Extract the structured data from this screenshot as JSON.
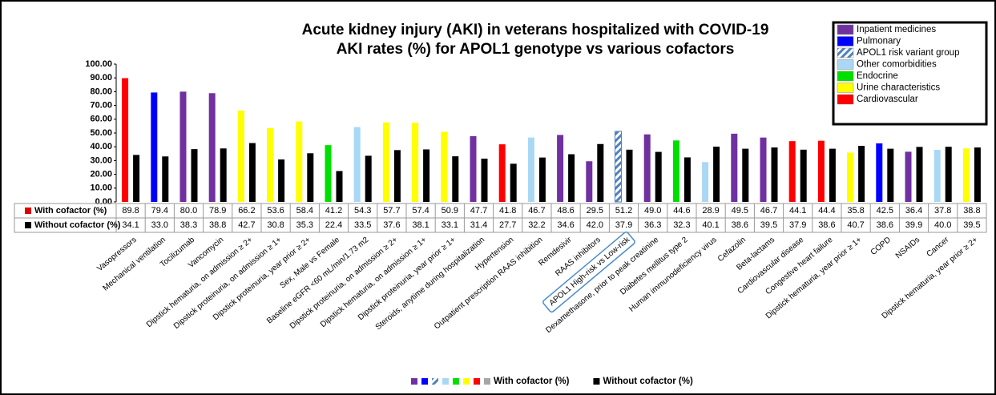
{
  "chart_data": {
    "type": "bar",
    "title": "Acute kidney injury (AKI) in veterans hospitalized with COVID-19",
    "subtitle": "AKI rates (%) for APOL1 genotype vs various cofactors",
    "categories": [
      "Vasopressors",
      "Mechanical ventilation",
      "Tocilizumab",
      "Vancomycin",
      "Dipstick hematuria, on admission ≥ 2+",
      "Dipstick proteinuria, on admission ≥ 1+",
      "Dipstick proteinuria, year prior ≥ 2+",
      "Sex, Male vs Female",
      "Baseline eGFR <60 mL/min/1.73 m2",
      "Dipstick proteinuria, on admission ≥ 2+",
      "Dipstick hematuria, on admission ≥ 1+",
      "Dipstick proteinuria, year prior ≥ 1+",
      "Steroids, anytime during hospitalization",
      "Hypertension",
      "Outpatient prescription RAAS inhibition",
      "Remdesivir",
      "RAAS inhibitors",
      "APOL1 High-risk vs Low-risk",
      "Dexamethasone, prior to peak creatinine",
      "Diabetes mellitus type 2",
      "Human immunodeficiency virus",
      "Cefazolin",
      "Beta-lactams",
      "Cardiovascular disease",
      "Congestive heart failure",
      "Dipstick hematuria, year prior ≥ 1+",
      "COPD",
      "NSAIDs",
      "Cancer",
      "Dipstick hematuria, year prior ≥ 2+"
    ],
    "series": [
      {
        "name": "With cofactor (%)",
        "color": "#e00000",
        "legend_color": "#a6a6a6",
        "colors": [
          "#ff0000",
          "#0000ff",
          "#7030a0",
          "#7030a0",
          "#ffff00",
          "#ffff00",
          "#ffff00",
          "#00e000",
          "#a9d8f5",
          "#ffff00",
          "#ffff00",
          "#ffff00",
          "#7030a0",
          "#ff0000",
          "#a9d8f5",
          "#7030a0",
          "#7030a0",
          "hatch",
          "#7030a0",
          "#00e000",
          "#a9d8f5",
          "#7030a0",
          "#7030a0",
          "#ff0000",
          "#ff0000",
          "#ffff00",
          "#0000ff",
          "#7030a0",
          "#a9d8f5",
          "#ffff00"
        ],
        "values": [
          89.8,
          79.4,
          80.0,
          78.9,
          66.2,
          53.6,
          58.4,
          41.2,
          54.3,
          57.7,
          57.4,
          50.9,
          47.7,
          41.8,
          46.7,
          48.6,
          29.5,
          51.2,
          49.0,
          44.6,
          28.9,
          49.5,
          46.7,
          44.1,
          44.4,
          35.8,
          42.5,
          36.4,
          37.8,
          38.8
        ],
        "value_labels": [
          "89.8",
          "79.4",
          "80.0",
          "78.9",
          "66.2",
          "53.6",
          "58.4",
          "41.2",
          "54.3",
          "57.7",
          "57.4",
          "50.9",
          "47.7",
          "41.8",
          "46.7",
          "48.6",
          "29.5",
          "51.2",
          "49.0",
          "44.6",
          "28.9",
          "49.5",
          "46.7",
          "44.1",
          "44.4",
          "35.8",
          "42.5",
          "36.4",
          "37.8",
          "38.8"
        ]
      },
      {
        "name": "Without cofactor (%)",
        "color": "#000000",
        "values": [
          34.1,
          33.0,
          38.3,
          38.8,
          42.7,
          30.8,
          35.3,
          22.4,
          33.5,
          37.6,
          38.1,
          33.1,
          31.4,
          27.7,
          32.2,
          34.6,
          42.0,
          37.9,
          36.3,
          32.3,
          40.1,
          38.6,
          39.5,
          37.9,
          38.6,
          40.7,
          38.6,
          39.9,
          40.0,
          39.5
        ],
        "value_labels": [
          "34.1",
          "33.0",
          "38.3",
          "38.8",
          "42.7",
          "30.8",
          "35.3",
          "22.4",
          "33.5",
          "37.6",
          "38.1",
          "33.1",
          "31.4",
          "27.7",
          "32.2",
          "34.6",
          "42.0",
          "37.9",
          "36.3",
          "32.3",
          "40.1",
          "38.6",
          "39.5",
          "37.9",
          "38.6",
          "40.7",
          "38.6",
          "39.9",
          "40.0",
          "39.5"
        ]
      }
    ],
    "groups": [
      {
        "name": "Inpatient medicines",
        "color": "#7030a0"
      },
      {
        "name": "Pulmonary",
        "color": "#0000ff"
      },
      {
        "name": "APOL1 risk variant group",
        "color": "hatch"
      },
      {
        "name": "Other comorbidities",
        "color": "#a9d8f5"
      },
      {
        "name": "Endocrine",
        "color": "#00e000"
      },
      {
        "name": "Urine characteristics",
        "color": "#ffff00"
      },
      {
        "name": "Cardiovascular",
        "color": "#ff0000"
      }
    ],
    "ylim": [
      0,
      100
    ],
    "yticks": [
      {
        "value": 0,
        "label": "0.00"
      },
      {
        "value": 10,
        "label": "10.00"
      },
      {
        "value": 20,
        "label": "20.00"
      },
      {
        "value": 30,
        "label": "30.00"
      },
      {
        "value": 40,
        "label": "40.00"
      },
      {
        "value": 50,
        "label": "50.00"
      },
      {
        "value": 60,
        "label": "60.00"
      },
      {
        "value": 70,
        "label": "70.00"
      },
      {
        "value": 80,
        "label": "80.00"
      },
      {
        "value": 90,
        "label": "90.00"
      },
      {
        "value": 100,
        "label": "100.00"
      }
    ],
    "grid": false
  }
}
